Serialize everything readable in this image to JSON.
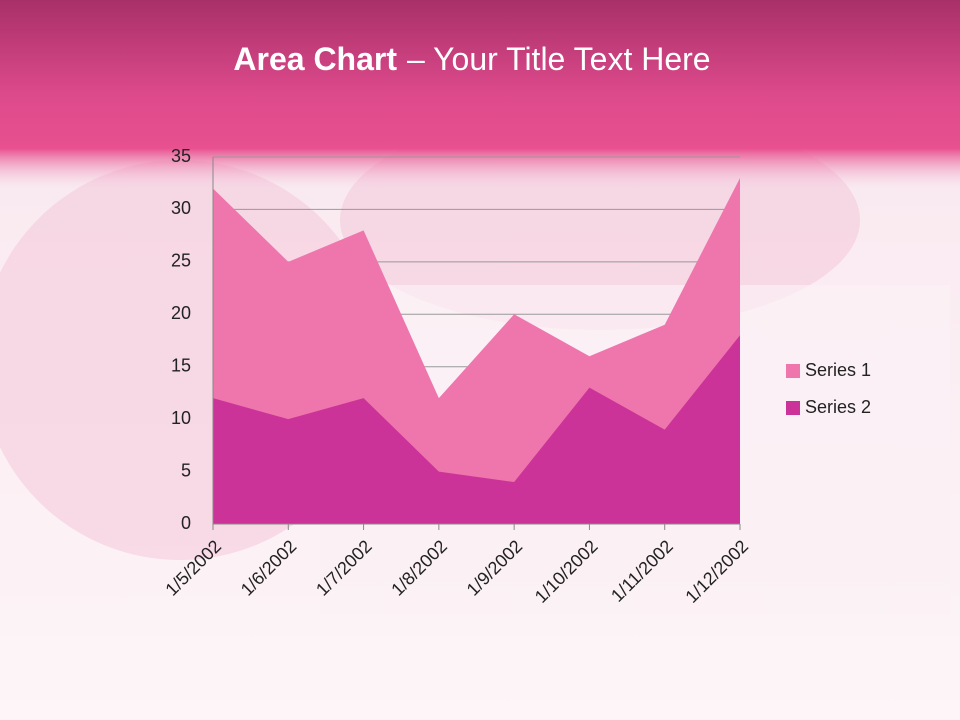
{
  "chart_data": {
    "type": "area",
    "title": {
      "bold": "Area Chart",
      "rest": "– Your Title Text Here"
    },
    "categories": [
      "1/5/2002",
      "1/6/2002",
      "1/7/2002",
      "1/8/2002",
      "1/9/2002",
      "1/10/2002",
      "1/11/2002",
      "1/12/2002"
    ],
    "series": [
      {
        "name": "Series 1",
        "color": "#ee76ad",
        "values": [
          32,
          25,
          28,
          12,
          20,
          16,
          19,
          33
        ]
      },
      {
        "name": "Series 2",
        "color": "#cc3399",
        "values": [
          12,
          10,
          12,
          5,
          4,
          13,
          9,
          18
        ]
      }
    ],
    "ylim": [
      0,
      35
    ],
    "yticks": [
      0,
      5,
      10,
      15,
      20,
      25,
      30,
      35
    ],
    "grid": true,
    "legend": "right"
  }
}
